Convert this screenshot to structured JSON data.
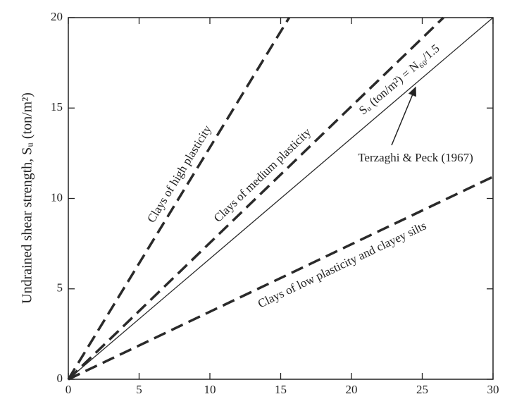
{
  "chart_data": {
    "type": "line",
    "ylabel": "Undrained shear strength, Sᵤ (ton/m²)",
    "xlim": [
      0,
      30
    ],
    "ylim": [
      0,
      20
    ],
    "xticks": [
      0,
      5,
      10,
      15,
      20,
      25,
      30
    ],
    "yticks": [
      0,
      5,
      10,
      15,
      20
    ],
    "series": [
      {
        "name": "Clays of high plasticity",
        "color": "#2a2a2a",
        "dashed": true,
        "x": [
          0,
          15.6
        ],
        "values": [
          0,
          20
        ]
      },
      {
        "name": "Clays of medium plasticity",
        "color": "#2a2a2a",
        "dashed": true,
        "x": [
          0,
          26.5
        ],
        "values": [
          0,
          20
        ]
      },
      {
        "name": "Sᵤ (ton/m²) = N₆₀/1.5",
        "color": "#2a2a2a",
        "dashed": false,
        "x": [
          0,
          30
        ],
        "values": [
          0,
          20
        ]
      },
      {
        "name": "Clays of low plasticity and clayey silts",
        "color": "#2a2a2a",
        "dashed": true,
        "x": [
          0,
          30
        ],
        "values": [
          0,
          11.2
        ]
      }
    ],
    "annotation": "Terzaghi & Peck (1967)"
  }
}
